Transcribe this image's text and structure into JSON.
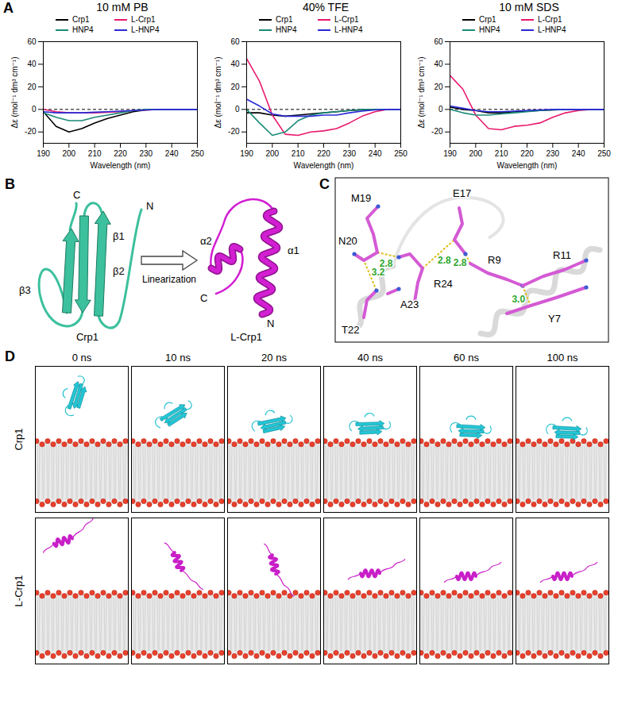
{
  "chart_data": [
    {
      "type": "line",
      "title": "10 mM PB",
      "x_label": "Wavelength (nm)",
      "y_label": "Δε (mol⁻¹ dm³ cm⁻¹)",
      "x": [
        190,
        195,
        200,
        205,
        210,
        215,
        220,
        225,
        230,
        235,
        240,
        245,
        250
      ],
      "series": [
        {
          "name": "Crp1",
          "color": "#000000",
          "values": [
            -2,
            -15,
            -20,
            -17,
            -12,
            -8,
            -5,
            -2,
            -0.5,
            0,
            0,
            0,
            0
          ]
        },
        {
          "name": "L-Crp1",
          "color": "#e8196d",
          "values": [
            0,
            -2,
            -3,
            -3,
            -3,
            -2.5,
            -2,
            -1,
            -0.5,
            0,
            0,
            0,
            0
          ]
        },
        {
          "name": "HNP4",
          "color": "#1b8a78",
          "values": [
            -3,
            -7,
            -10,
            -10,
            -7,
            -5,
            -3,
            -1,
            0,
            0,
            0,
            0,
            0
          ]
        },
        {
          "name": "L-HNP4",
          "color": "#2a2ad6",
          "values": [
            -2,
            -3,
            -3,
            -3,
            -2.5,
            -2,
            -1.5,
            -1,
            -0.5,
            0,
            0,
            0,
            0
          ]
        }
      ],
      "xlim": [
        190,
        250
      ],
      "xticks": [
        190,
        200,
        210,
        220,
        230,
        240,
        250
      ],
      "ylim": [
        -30,
        60
      ],
      "yticks": [
        -20,
        0,
        20,
        40,
        60
      ],
      "reference_line": {
        "value": 0,
        "line_style": "dashed"
      },
      "legend": "top"
    },
    {
      "type": "line",
      "title": "40% TFE",
      "x_label": "Wavelength (nm)",
      "y_label": "Δε (mol⁻¹ dm³ cm⁻¹)",
      "x": [
        190,
        195,
        200,
        205,
        210,
        215,
        220,
        225,
        230,
        235,
        240,
        245,
        250
      ],
      "series": [
        {
          "name": "Crp1",
          "color": "#000000",
          "values": [
            -3,
            -3,
            -5,
            -6,
            -5,
            -4,
            -3,
            -2,
            -1,
            -0.5,
            0,
            0,
            0
          ]
        },
        {
          "name": "L-Crp1",
          "color": "#e8196d",
          "values": [
            45,
            25,
            -5,
            -22,
            -23,
            -20,
            -19,
            -17,
            -12,
            -6,
            -2,
            0,
            0
          ]
        },
        {
          "name": "HNP4",
          "color": "#1b8a78",
          "values": [
            0,
            -12,
            -23,
            -20,
            -10,
            -5,
            -3,
            -2,
            -1,
            0,
            0,
            0,
            0
          ]
        },
        {
          "name": "L-HNP4",
          "color": "#2a2ad6",
          "values": [
            9,
            3,
            -4,
            -6,
            -6,
            -6,
            -5,
            -5,
            -3,
            -1.5,
            -0.5,
            0,
            0
          ]
        }
      ],
      "xlim": [
        190,
        250
      ],
      "xticks": [
        190,
        200,
        210,
        220,
        230,
        240,
        250
      ],
      "ylim": [
        -30,
        60
      ],
      "yticks": [
        -20,
        0,
        20,
        40,
        60
      ],
      "reference_line": {
        "value": 0,
        "line_style": "dashed"
      },
      "legend": "top"
    },
    {
      "type": "line",
      "title": "10 mM SDS",
      "x_label": "Wavelength (nm)",
      "y_label": "Δε (mol⁻¹ dm³ cm⁻¹)",
      "x": [
        190,
        195,
        200,
        205,
        210,
        215,
        220,
        225,
        230,
        235,
        240,
        245,
        250
      ],
      "series": [
        {
          "name": "Crp1",
          "color": "#000000",
          "values": [
            2,
            0,
            -1,
            -3,
            -3,
            -2,
            -1.5,
            -1,
            -0.5,
            0,
            0,
            0,
            0
          ]
        },
        {
          "name": "L-Crp1",
          "color": "#e8196d",
          "values": [
            30,
            18,
            -5,
            -17,
            -18,
            -15,
            -14,
            -12,
            -7,
            -3,
            -1,
            0,
            0
          ]
        },
        {
          "name": "HNP4",
          "color": "#1b8a78",
          "values": [
            0,
            -3,
            -5,
            -5,
            -4,
            -3,
            -2,
            -1,
            -0.5,
            0,
            0,
            0,
            0
          ]
        },
        {
          "name": "L-HNP4",
          "color": "#2a2ad6",
          "values": [
            3,
            1,
            -1,
            -2,
            -2,
            -1.5,
            -1,
            -0.5,
            0,
            0,
            0,
            0,
            0
          ]
        }
      ],
      "xlim": [
        190,
        250
      ],
      "xticks": [
        190,
        200,
        210,
        220,
        230,
        240,
        250
      ],
      "ylim": [
        -30,
        60
      ],
      "yticks": [
        -20,
        0,
        20,
        40,
        60
      ],
      "reference_line": {
        "value": 0,
        "line_style": "dashed"
      },
      "legend": "top"
    }
  ],
  "panel_letters": [
    "A",
    "B",
    "C",
    "D"
  ],
  "panel_B": {
    "structures": [
      {
        "name": "Crp1",
        "termini": [
          "N",
          "C"
        ],
        "elements": [
          "β1",
          "β2",
          "β3"
        ]
      },
      {
        "name": "L-Crp1",
        "termini": [
          "N",
          "C"
        ],
        "elements": [
          "α1",
          "α2"
        ]
      }
    ],
    "arrow_label": "Linearization"
  },
  "panel_C": {
    "residues": [
      "M19",
      "N20",
      "E17",
      "R24",
      "R9",
      "R11",
      "Y7",
      "T22",
      "A23"
    ],
    "hbonds": [
      {
        "pair": [
          "N20",
          "R24"
        ],
        "distance": 2.8
      },
      {
        "pair": [
          "R24",
          "E17"
        ],
        "distance": 2.8
      },
      {
        "pair": [
          "E17",
          "R9"
        ],
        "distance": 2.8
      },
      {
        "pair": [
          "R11",
          "Y7"
        ],
        "distance": 3.0
      },
      {
        "pair": [
          "T22",
          "N20"
        ],
        "distance": 3.2
      }
    ]
  },
  "panel_D": {
    "times": [
      "0 ns",
      "10 ns",
      "20 ns",
      "40 ns",
      "60 ns",
      "100 ns"
    ],
    "rows": [
      "Crp1",
      "L-Crp1"
    ]
  }
}
